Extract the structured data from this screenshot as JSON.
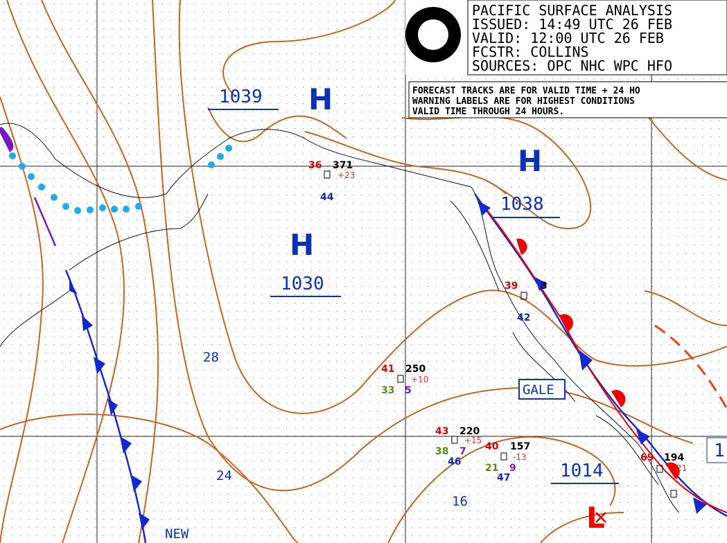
{
  "header": {
    "title": "PACIFIC SURFACE ANALYSIS",
    "issued": "ISSUED: 14:49 UTC 26 FEB",
    "valid": "VALID: 12:00 UTC 26 FEB",
    "forecaster": "FCSTR: COLLINS",
    "sources": "SOURCES: OPC NHC WPC HFO"
  },
  "note": {
    "lines": [
      "FORECAST TRACKS ARE FOR VALID TIME + 24 HO",
      "WARNING LABELS ARE FOR HIGHEST CONDITIONS",
      "VALID TIME THROUGH 24 HOURS."
    ]
  },
  "pressure_centers": [
    {
      "type": "H",
      "value": "1039"
    },
    {
      "type": "H",
      "value": "1030"
    },
    {
      "type": "H",
      "value": "1038"
    },
    {
      "type": "L",
      "value": "1014"
    }
  ],
  "labels": {
    "gale": "GALE",
    "new": "NEW"
  },
  "isobar_labels": [
    "28",
    "24",
    "16",
    "1"
  ],
  "stations": [
    {
      "temp": "36",
      "pressure": "371",
      "tendency": "+23",
      "visibility": "44"
    },
    {
      "temp": "39",
      "pressure": "3",
      "visibility": "42"
    },
    {
      "temp": "41",
      "pressure": "250",
      "tendency": "+10",
      "dewpoint": "33",
      "weather": "5"
    },
    {
      "temp": "43",
      "pressure": "220",
      "tendency": "+15",
      "dewpoint": "38",
      "weather": "7",
      "visibility": "46"
    },
    {
      "temp": "40",
      "pressure": "157",
      "tendency": "-13",
      "dewpoint": "21",
      "weather": "9",
      "visibility": "47"
    },
    {
      "temp": "69",
      "pressure": "194",
      "tendency": "21"
    }
  ]
}
